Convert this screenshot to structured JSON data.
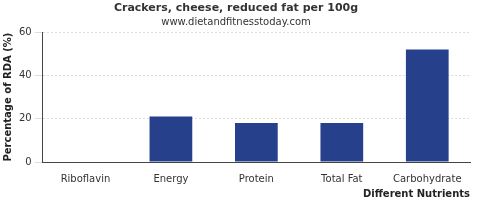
{
  "chart_data": {
    "type": "bar",
    "title": "Crackers, cheese, reduced fat per 100g",
    "subtitle": "www.dietandfitnesstoday.com",
    "x_label": "Different Nutrients",
    "y_label": "Percentage of RDA (%)",
    "categories": [
      "Riboflavin",
      "Energy",
      "Protein",
      "Total Fat",
      "Carbohydrate"
    ],
    "values": [
      0,
      21,
      18,
      18,
      52
    ],
    "color": "#27408b",
    "ylim": [
      0,
      60
    ],
    "yticks": [
      0,
      20,
      40,
      60
    ],
    "grid": true
  }
}
